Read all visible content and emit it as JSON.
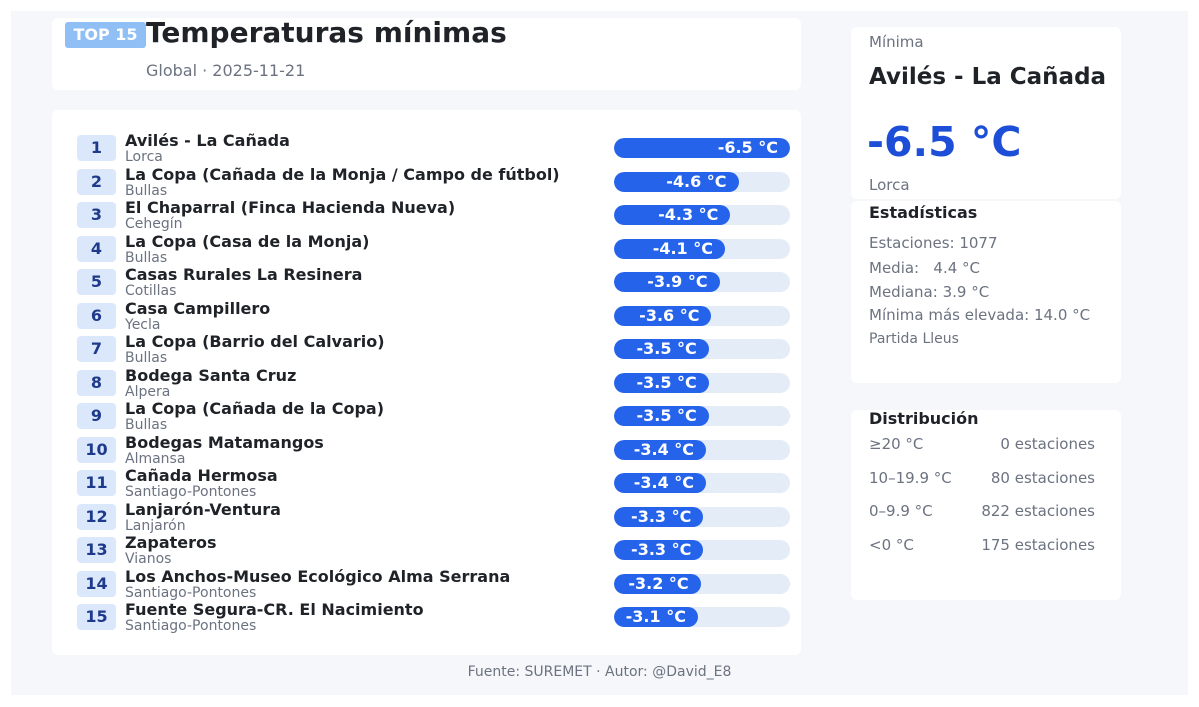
{
  "header": {
    "badge": "TOP 15",
    "title": "Temperaturas mínimas",
    "subtitle": "Global · 2025-11-21"
  },
  "chart_data": {
    "type": "bar",
    "title": "Temperaturas mínimas",
    "unit": "°C",
    "xlim": [
      0,
      -6.5
    ],
    "categories": [
      "Avilés - La Cañada",
      "La Copa  (Cañada de la Monja / Campo de fútbol)",
      "El Chaparral (Finca Hacienda Nueva)",
      "La Copa (Casa de la Monja)",
      "Casas Rurales La Resinera",
      "Casa Campillero",
      "La Copa (Barrio del Calvario)",
      "Bodega Santa Cruz",
      "La Copa (Cañada de la Copa)",
      "Bodegas Matamangos",
      "Cañada Hermosa",
      "Lanjarón-Ventura",
      "Zapateros",
      "Los Anchos-Museo Ecológico Alma Serrana",
      "Fuente Segura-CR. El Nacimiento"
    ],
    "values": [
      -6.5,
      -4.6,
      -4.3,
      -4.1,
      -3.9,
      -3.6,
      -3.5,
      -3.5,
      -3.5,
      -3.4,
      -3.4,
      -3.3,
      -3.3,
      -3.2,
      -3.1
    ]
  },
  "rows": [
    {
      "rank": "1",
      "name": "Avilés - La Cañada",
      "location": "Lorca",
      "value_label": "-6.5 °C"
    },
    {
      "rank": "2",
      "name": "La Copa  (Cañada de la Monja / Campo de fútbol)",
      "location": "Bullas",
      "value_label": "-4.6 °C"
    },
    {
      "rank": "3",
      "name": "El Chaparral (Finca Hacienda Nueva)",
      "location": "Cehegín",
      "value_label": "-4.3 °C"
    },
    {
      "rank": "4",
      "name": "La Copa (Casa de la Monja)",
      "location": "Bullas",
      "value_label": "-4.1 °C"
    },
    {
      "rank": "5",
      "name": "Casas Rurales La Resinera",
      "location": "Cotillas",
      "value_label": "-3.9 °C"
    },
    {
      "rank": "6",
      "name": "Casa Campillero",
      "location": "Yecla",
      "value_label": "-3.6 °C"
    },
    {
      "rank": "7",
      "name": "La Copa (Barrio del Calvario)",
      "location": "Bullas",
      "value_label": "-3.5 °C"
    },
    {
      "rank": "8",
      "name": "Bodega Santa Cruz",
      "location": "Alpera",
      "value_label": "-3.5 °C"
    },
    {
      "rank": "9",
      "name": "La Copa (Cañada de la Copa)",
      "location": "Bullas",
      "value_label": "-3.5 °C"
    },
    {
      "rank": "10",
      "name": "Bodegas Matamangos",
      "location": "Almansa",
      "value_label": "-3.4 °C"
    },
    {
      "rank": "11",
      "name": "Cañada Hermosa",
      "location": "Santiago-Pontones",
      "value_label": "-3.4 °C"
    },
    {
      "rank": "12",
      "name": "Lanjarón-Ventura",
      "location": "Lanjarón",
      "value_label": "-3.3 °C"
    },
    {
      "rank": "13",
      "name": "Zapateros",
      "location": "Vianos",
      "value_label": "-3.3 °C"
    },
    {
      "rank": "14",
      "name": "Los Anchos-Museo Ecológico Alma Serrana",
      "location": "Santiago-Pontones",
      "value_label": "-3.2 °C"
    },
    {
      "rank": "15",
      "name": "Fuente Segura-CR. El Nacimiento",
      "location": "Santiago-Pontones",
      "value_label": "-3.1 °C"
    }
  ],
  "side": {
    "min_label": "Mínima",
    "min_name": "Avilés - La Cañada",
    "min_value": "-6.5 °C",
    "min_location": "Lorca",
    "stats_title": "Estadísticas",
    "stations": "Estaciones: 1077",
    "mean": "Media:   4.4 °C",
    "median": "Mediana: 3.9 °C",
    "max_min": "Mínima más elevada: 14.0 °C",
    "max_min_station": "Partida Lleus",
    "dist_title": "Distribución",
    "distribution": [
      {
        "range": "≥20 °C",
        "count": "0 estaciones"
      },
      {
        "range": "10–19.9 °C",
        "count": "80 estaciones"
      },
      {
        "range": "0–9.9 °C",
        "count": "822 estaciones"
      },
      {
        "range": "<0 °C",
        "count": "175 estaciones"
      }
    ]
  },
  "footer": "Fuente: SUREMET · Autor: @David_E8",
  "colors": {
    "bar": "#2563eb",
    "track": "#e4ecf7",
    "accent": "#1d4ed8",
    "badge": "#8fbff5"
  }
}
